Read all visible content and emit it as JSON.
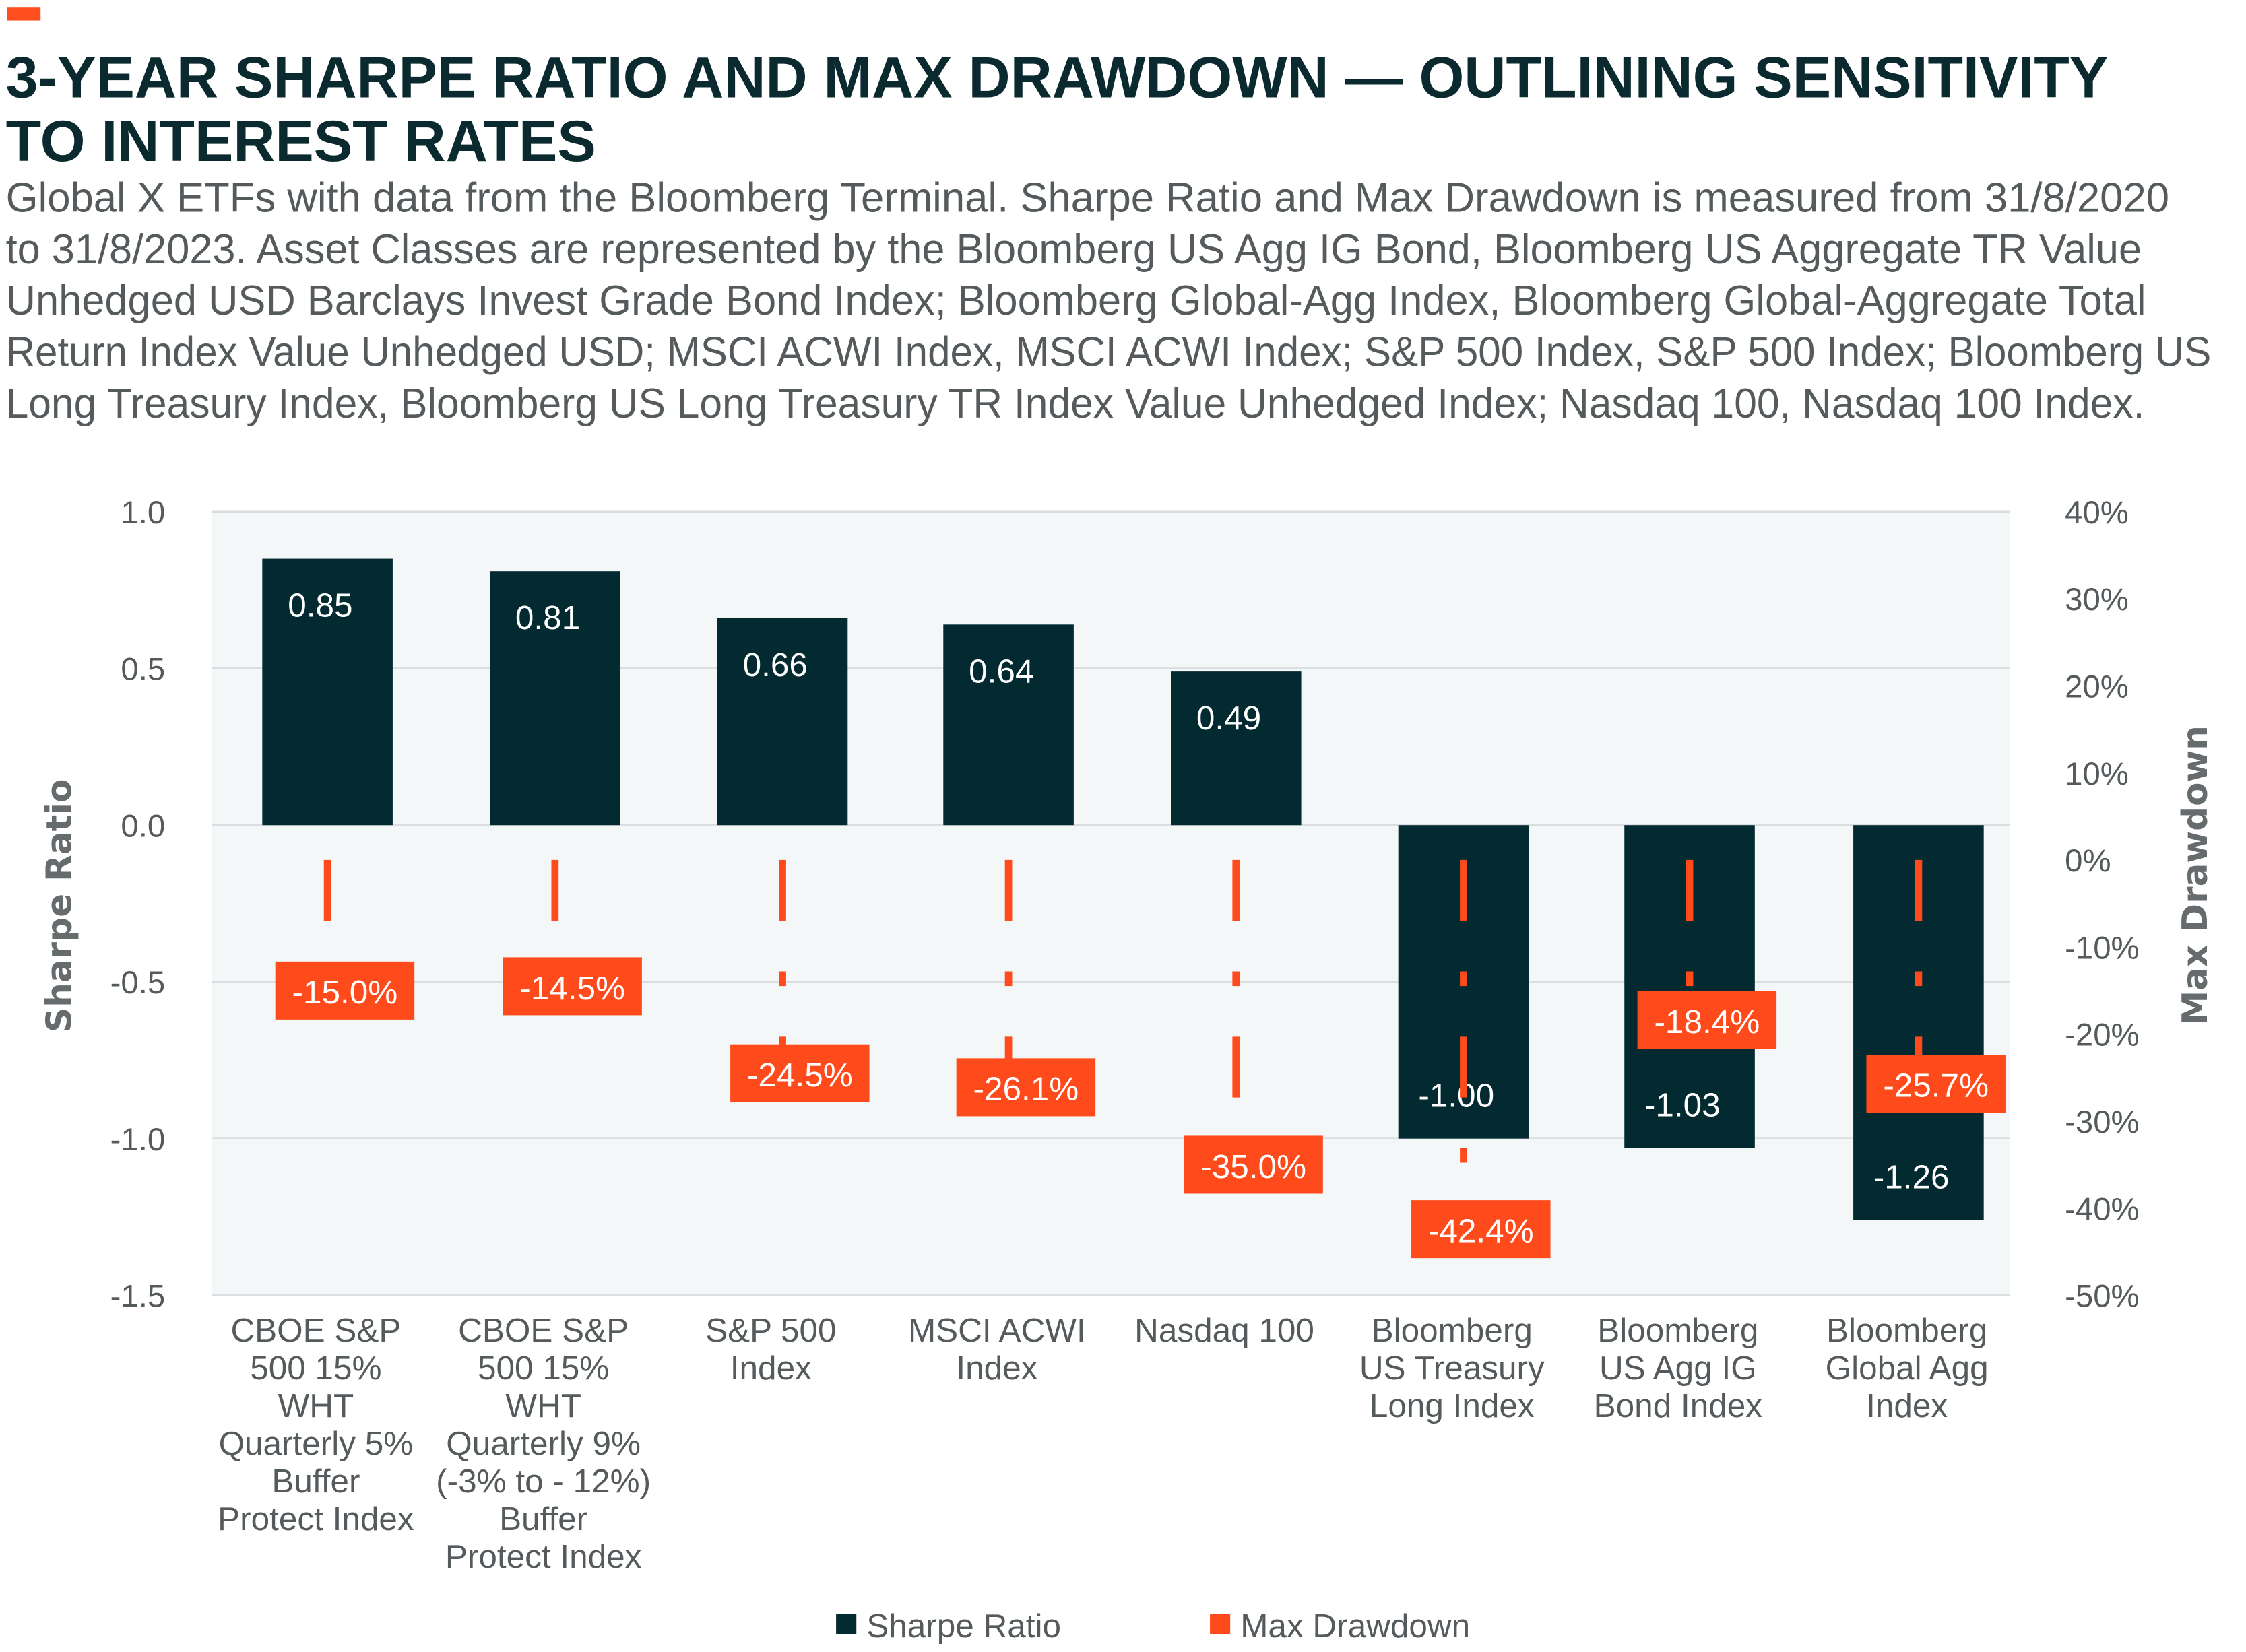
{
  "header": {
    "title_lines": [
      "3-YEAR SHARPE RATIO AND MAX DRAWDOWN — OUTLINING SENSITIVITY",
      "TO INTEREST RATES"
    ],
    "subtitle_lines": [
      "Global X ETFs with data from the Bloomberg Terminal. Sharpe Ratio and Max Drawdown is measured from 31/8/2020",
      "to 31/8/2023. Asset Classes are represented by the Bloomberg US Agg IG Bond, Bloomberg US Aggregate TR Value",
      "Unhedged USD Barclays Invest Grade Bond Index; Bloomberg Global-Agg Index, Bloomberg Global-Aggregate Total",
      "Return Index Value Unhedged USD; MSCI ACWI Index, MSCI ACWI Index; S&P 500 Index, S&P 500 Index; Bloomberg US",
      "Long Treasury Index, Bloomberg US Long Treasury TR Index Value Unhedged Index; Nasdaq 100, Nasdaq 100 Index."
    ],
    "accent_color": "#ff4f1f"
  },
  "chart_data": {
    "type": "bar",
    "categories": [
      [
        "CBOE S&P",
        "500 15%",
        "WHT",
        "Quarterly 5%",
        "Buffer",
        "Protect Index"
      ],
      [
        "CBOE S&P",
        "500 15%",
        "WHT",
        "Quarterly 9%",
        "(-3% to - 12%)",
        "Buffer",
        "Protect Index"
      ],
      [
        "S&P 500",
        "Index"
      ],
      [
        "MSCI ACWI",
        "Index"
      ],
      [
        "Nasdaq 100"
      ],
      [
        "Bloomberg",
        "US Treasury",
        "Long  Index"
      ],
      [
        "Bloomberg",
        "US Agg IG",
        "Bond Index"
      ],
      [
        "Bloomberg",
        "Global Agg",
        "Index"
      ]
    ],
    "series": [
      {
        "name": "Sharpe Ratio",
        "axis": "left",
        "color": "#022a30",
        "values": [
          0.85,
          0.81,
          0.66,
          0.64,
          0.49,
          -1.0,
          -1.03,
          -1.26
        ],
        "labels": [
          "0.85",
          "0.81",
          "0.66",
          "0.64",
          "0.49",
          "-1.00",
          "-1.03",
          "-1.26"
        ]
      },
      {
        "name": "Max Drawdown",
        "axis": "right",
        "color": "#ff4b1c",
        "values": [
          -15.0,
          -14.5,
          -24.5,
          -26.1,
          -35.0,
          -42.4,
          -18.4,
          -25.7
        ],
        "labels": [
          "-15.0%",
          "-14.5%",
          "-24.5%",
          "-26.1%",
          "-35.0%",
          "-42.4%",
          "-18.4%",
          "-25.7%"
        ]
      }
    ],
    "ylabel": "Sharpe Ratio",
    "ylim": [
      -1.5,
      1.0
    ],
    "yticks": [
      "1.0",
      "0.5",
      "0.0",
      "-0.5",
      "-1.0",
      "-1.5"
    ],
    "y2label": "Max Drawdown",
    "y2lim": [
      -50,
      40
    ],
    "y2ticks": [
      "40%",
      "30%",
      "20%",
      "10%",
      "0%",
      "-10%",
      "-20%",
      "-30%",
      "-40%",
      "-50%"
    ],
    "grid": true,
    "legend_position": "bottom",
    "plot_background": "#f3f7f8"
  }
}
